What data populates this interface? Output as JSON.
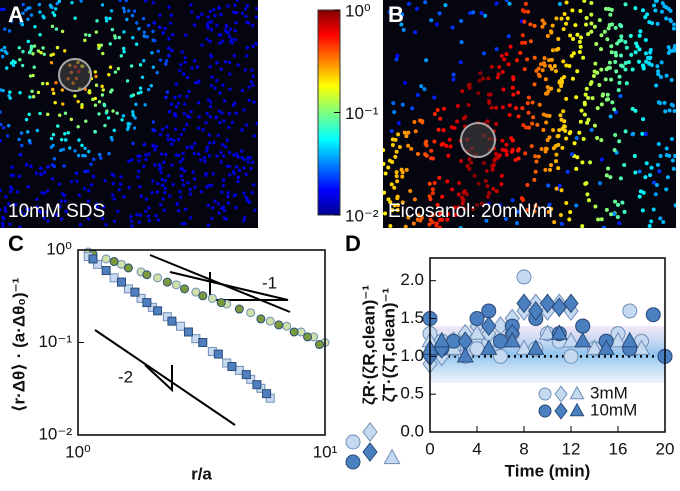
{
  "panels": {
    "a": {
      "letter": "A",
      "caption": "10mM SDS"
    },
    "b": {
      "letter": "B",
      "caption": "Eicosanol: 20mN/m"
    },
    "colorbar": {
      "lim": [
        0.01,
        1
      ],
      "log": true,
      "ticks": [
        {
          "value": 0.01,
          "label": "10⁻²"
        },
        {
          "value": 0.1,
          "label": "10⁻¹"
        },
        {
          "value": 1,
          "label": "10⁰"
        }
      ]
    }
  },
  "chart_data": [
    {
      "type": "scatter",
      "letter": "C",
      "xlabel": "r/a",
      "ylabel": "⟨r·Δθ⟩ · (a·Δθ₀)⁻¹",
      "xlog": true,
      "ylog": true,
      "xlim": [
        1,
        10
      ],
      "ylim": [
        0.01,
        1
      ],
      "xticks": [
        {
          "value": 1,
          "label": "10⁰"
        },
        {
          "value": 10,
          "label": "10¹"
        }
      ],
      "yticks": [
        {
          "value": 0.01,
          "label": "10⁻²"
        },
        {
          "value": 0.1,
          "label": "10⁻¹"
        },
        {
          "value": 1,
          "label": "10⁰"
        }
      ],
      "annotations": [
        "-1",
        "-2"
      ],
      "series": [
        {
          "color": "#cfe0a8",
          "marker": "circle",
          "x": [
            1.1,
            1.3,
            1.5,
            1.8,
            2.1,
            2.5,
            3,
            3.5,
            4,
            5,
            6,
            7,
            8,
            9,
            10
          ],
          "values": [
            0.95,
            0.8,
            0.7,
            0.58,
            0.5,
            0.42,
            0.35,
            0.3,
            0.26,
            0.21,
            0.17,
            0.15,
            0.13,
            0.115,
            0.1
          ]
        },
        {
          "color": "#7a9a3c",
          "marker": "circle",
          "x": [
            1.15,
            1.4,
            1.6,
            1.9,
            2.3,
            2.7,
            3.2,
            3.8,
            4.5,
            5.5,
            6.5,
            7.5,
            8.5,
            9.5
          ],
          "values": [
            0.9,
            0.75,
            0.64,
            0.54,
            0.45,
            0.38,
            0.32,
            0.27,
            0.23,
            0.18,
            0.155,
            0.13,
            0.115,
            0.095
          ]
        },
        {
          "color": "#c8daf0",
          "marker": "square",
          "x": [
            1.1,
            1.2,
            1.4,
            1.6,
            1.8,
            2,
            2.3,
            2.6,
            3,
            3.5,
            4,
            4.5,
            5,
            5.5,
            6
          ],
          "values": [
            0.85,
            0.7,
            0.5,
            0.38,
            0.3,
            0.24,
            0.19,
            0.15,
            0.11,
            0.08,
            0.06,
            0.05,
            0.04,
            0.032,
            0.025
          ]
        },
        {
          "color": "#4f7fbf",
          "marker": "square",
          "x": [
            1.15,
            1.3,
            1.5,
            1.7,
            1.9,
            2.1,
            2.4,
            2.8,
            3.2,
            3.7,
            4.2,
            4.8,
            5.3,
            5.8
          ],
          "values": [
            0.8,
            0.6,
            0.45,
            0.35,
            0.27,
            0.22,
            0.17,
            0.13,
            0.1,
            0.075,
            0.055,
            0.045,
            0.035,
            0.028
          ]
        }
      ]
    },
    {
      "type": "scatter",
      "letter": "D",
      "xlabel": "Time (min)",
      "ylabel": [
        "ζR·(ζR,clean)⁻¹",
        "ζT·(ζT,clean)⁻¹"
      ],
      "xlim": [
        0,
        20
      ],
      "ylim": [
        0,
        2.3
      ],
      "xticks": [
        0,
        4,
        8,
        12,
        16,
        20
      ],
      "yticks": [
        {
          "value": 0,
          "label": "0.0"
        },
        0.5,
        {
          "value": 1,
          "label": "1.0"
        },
        1.5,
        {
          "value": 2,
          "label": "2.0"
        }
      ],
      "reference_line": 1,
      "series": [
        {
          "name": "3mM",
          "color": "#c5d9f0",
          "marker": "circle",
          "x": [
            0,
            1,
            2,
            3,
            4,
            5,
            6,
            7,
            8,
            9,
            10,
            11,
            12,
            13,
            14,
            15,
            16,
            17,
            18,
            20
          ],
          "values": [
            1.3,
            1.2,
            1.1,
            1.0,
            1.1,
            1.2,
            1.0,
            1.3,
            2.05,
            1.1,
            1.3,
            1.2,
            1.0,
            1.4,
            1.1,
            1.2,
            1.3,
            1.6,
            1.2,
            1.0
          ]
        },
        {
          "name": "3mM",
          "color": "#c5d9f0",
          "marker": "diamond",
          "x": [
            0,
            1,
            2,
            3,
            4,
            5,
            6,
            7,
            8,
            9,
            10,
            11,
            12
          ],
          "values": [
            0.9,
            1.0,
            1.2,
            1.3,
            1.4,
            1.3,
            1.4,
            1.5,
            1.6,
            1.7,
            1.6,
            1.7,
            1.6
          ]
        },
        {
          "name": "3mM",
          "color": "#c5d9f0",
          "marker": "triangle",
          "x": [
            0,
            2,
            4,
            6,
            8,
            10,
            12,
            14,
            16,
            18
          ],
          "values": [
            1.2,
            1.1,
            1.3,
            1.2,
            1.1,
            1.3,
            1.2,
            1.1,
            1.2,
            1.1
          ]
        },
        {
          "name": "10mM",
          "color": "#4a7fc0",
          "marker": "circle",
          "x": [
            0,
            1,
            2,
            4,
            5,
            6,
            7,
            9,
            11,
            13,
            15,
            17,
            19,
            20
          ],
          "values": [
            1.5,
            1.1,
            1.2,
            1.5,
            1.6,
            1.2,
            1.4,
            1.5,
            1.3,
            1.4,
            1.2,
            1.1,
            1.55,
            1.0
          ]
        },
        {
          "name": "10mM",
          "color": "#4a7fc0",
          "marker": "diamond",
          "x": [
            0,
            1,
            3,
            5,
            7,
            8,
            9,
            10,
            11,
            12
          ],
          "values": [
            1.0,
            1.1,
            1.2,
            1.4,
            1.3,
            1.7,
            1.6,
            1.7,
            1.65,
            1.7
          ]
        },
        {
          "name": "10mM",
          "color": "#4a7fc0",
          "marker": "triangle",
          "x": [
            0,
            1,
            3,
            5,
            7,
            9,
            11,
            13,
            15,
            17
          ],
          "values": [
            1.1,
            1.2,
            1.0,
            1.1,
            1.2,
            1.1,
            1.3,
            1.2,
            1.1,
            1.2
          ]
        }
      ]
    }
  ]
}
